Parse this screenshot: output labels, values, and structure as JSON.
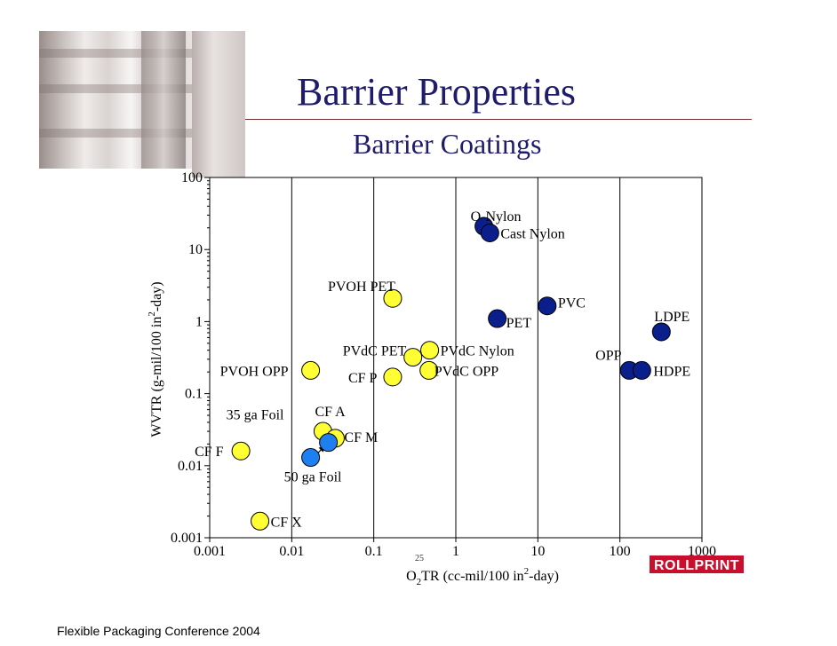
{
  "slide": {
    "title": "Barrier Properties",
    "subtitle": "Barrier Coatings",
    "footer": "Flexible Packaging Conference 2004",
    "page_number": "25",
    "logo_text": "ROLLPRINT"
  },
  "colors": {
    "title": "#1f1c6b",
    "navy_marker": "#0a1f8c",
    "blue_marker": "#1e7ff0",
    "yellow_marker": "#ffff33",
    "rule": "#7a2a2a"
  },
  "chart_data": {
    "type": "scatter",
    "x_scale": "log",
    "y_scale": "log",
    "xlim": [
      0.001,
      1000
    ],
    "ylim": [
      0.001,
      100
    ],
    "grid": "vertical gridlines only",
    "xlabel": {
      "main": "O",
      "sub": "2",
      "mid": "TR (cc-mil/100 in",
      "sup": "2",
      "end": "-day)"
    },
    "ylabel": {
      "main": "WVTR (g-mil/100 in",
      "sup": "2",
      "end": "-day)"
    },
    "x_ticks": [
      "0.001",
      "0.01",
      "0.1",
      "1",
      "10",
      "100",
      "1000"
    ],
    "y_ticks": [
      "0.001",
      "0.01",
      "0.1",
      "1",
      "10",
      "100"
    ],
    "points": [
      {
        "label": "O-Nylon",
        "x": 2.2,
        "y": 21,
        "color": "navy"
      },
      {
        "label": "Cast Nylon",
        "x": 2.6,
        "y": 17,
        "color": "navy"
      },
      {
        "label": "PVC",
        "x": 13,
        "y": 1.65,
        "color": "navy"
      },
      {
        "label": "PET",
        "x": 3.2,
        "y": 1.1,
        "color": "navy"
      },
      {
        "label": "LDPE",
        "x": 320,
        "y": 0.72,
        "color": "navy"
      },
      {
        "label": "OPP",
        "x": 130,
        "y": 0.21,
        "color": "navy"
      },
      {
        "label": "HDPE",
        "x": 185,
        "y": 0.21,
        "color": "navy"
      },
      {
        "label": "PVOH PET",
        "x": 0.17,
        "y": 2.1,
        "color": "yellow"
      },
      {
        "label": "PVdC PET",
        "x": 0.3,
        "y": 0.32,
        "color": "yellow"
      },
      {
        "label": "PVdC Nylon",
        "x": 0.48,
        "y": 0.4,
        "color": "yellow"
      },
      {
        "label": "PVOH OPP",
        "x": 0.017,
        "y": 0.21,
        "color": "yellow"
      },
      {
        "label": "CF P",
        "x": 0.17,
        "y": 0.17,
        "color": "yellow"
      },
      {
        "label": "PVdC OPP",
        "x": 0.47,
        "y": 0.21,
        "color": "yellow"
      },
      {
        "label": "CF A",
        "x": 0.024,
        "y": 0.03,
        "color": "yellow"
      },
      {
        "label": "CF M",
        "x": 0.034,
        "y": 0.024,
        "color": "yellow"
      },
      {
        "label": "CF F",
        "x": 0.0024,
        "y": 0.016,
        "color": "yellow"
      },
      {
        "label": "CF X",
        "x": 0.0041,
        "y": 0.0017,
        "color": "yellow"
      },
      {
        "label": "35 ga Foil",
        "x": 0.028,
        "y": 0.021,
        "color": "blue"
      },
      {
        "label": "50 ga Foil",
        "x": 0.017,
        "y": 0.013,
        "color": "blue"
      }
    ]
  }
}
